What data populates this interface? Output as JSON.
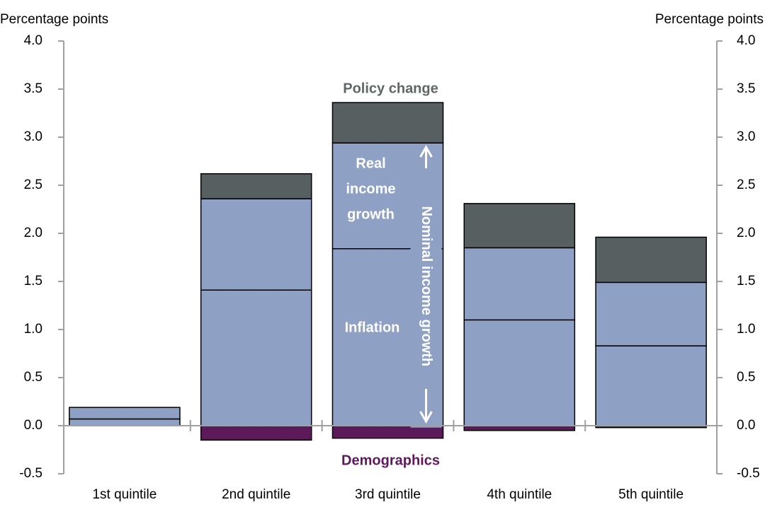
{
  "chart_data": {
    "type": "stacked-bar",
    "y_label": "Percentage points",
    "y2_label": "Percentage points",
    "categories": [
      "1st quintile",
      "2nd quintile",
      "3rd quintile",
      "4th quintile",
      "5th quintile"
    ],
    "series": [
      {
        "name": "Demographics",
        "color": "#5c1a5a",
        "values": [
          0,
          -0.15,
          -0.13,
          -0.05,
          -0.02
        ]
      },
      {
        "name": "Inflation",
        "color": "#8fa0c5",
        "values": [
          0.07,
          1.41,
          1.84,
          1.1,
          0.83
        ]
      },
      {
        "name": "Real income growth",
        "color": "#8fa0c5",
        "values": [
          0.12,
          0.95,
          1.1,
          0.75,
          0.66
        ]
      },
      {
        "name": "Policy change",
        "color": "#575f61",
        "values": [
          0,
          0.26,
          0.42,
          0.46,
          0.47
        ]
      }
    ],
    "annotations": {
      "policy": "Policy change",
      "real": [
        "Real",
        "income",
        "growth"
      ],
      "inflation": "Inflation",
      "nominal": "Nominal income growth",
      "demographics": "Demographics"
    },
    "ylim": [
      -0.5,
      4.0
    ],
    "yticks": [
      {
        "value": -0.5,
        "label": "-0.5"
      },
      {
        "value": 0,
        "label": "0.0"
      },
      {
        "value": 0.5,
        "label": "0.5"
      },
      {
        "value": 1,
        "label": "1.0"
      },
      {
        "value": 1.5,
        "label": "1.5"
      },
      {
        "value": 2,
        "label": "2.0"
      },
      {
        "value": 2.5,
        "label": "2.5"
      },
      {
        "value": 3,
        "label": "3.0"
      },
      {
        "value": 3.5,
        "label": "3.5"
      },
      {
        "value": 4,
        "label": "4.0"
      }
    ],
    "y2lim": [
      -0.5,
      4.0
    ],
    "y2ticks": [
      {
        "value": -0.5,
        "label": "-0.5"
      },
      {
        "value": 0,
        "label": "0.0"
      },
      {
        "value": 0.5,
        "label": "0.5"
      },
      {
        "value": 1,
        "label": "1.0"
      },
      {
        "value": 1.5,
        "label": "1.5"
      },
      {
        "value": 2,
        "label": "2.0"
      },
      {
        "value": 2.5,
        "label": "2.5"
      },
      {
        "value": 3,
        "label": "3.0"
      },
      {
        "value": 3.5,
        "label": "3.5"
      },
      {
        "value": 4,
        "label": "4.0"
      }
    ]
  }
}
